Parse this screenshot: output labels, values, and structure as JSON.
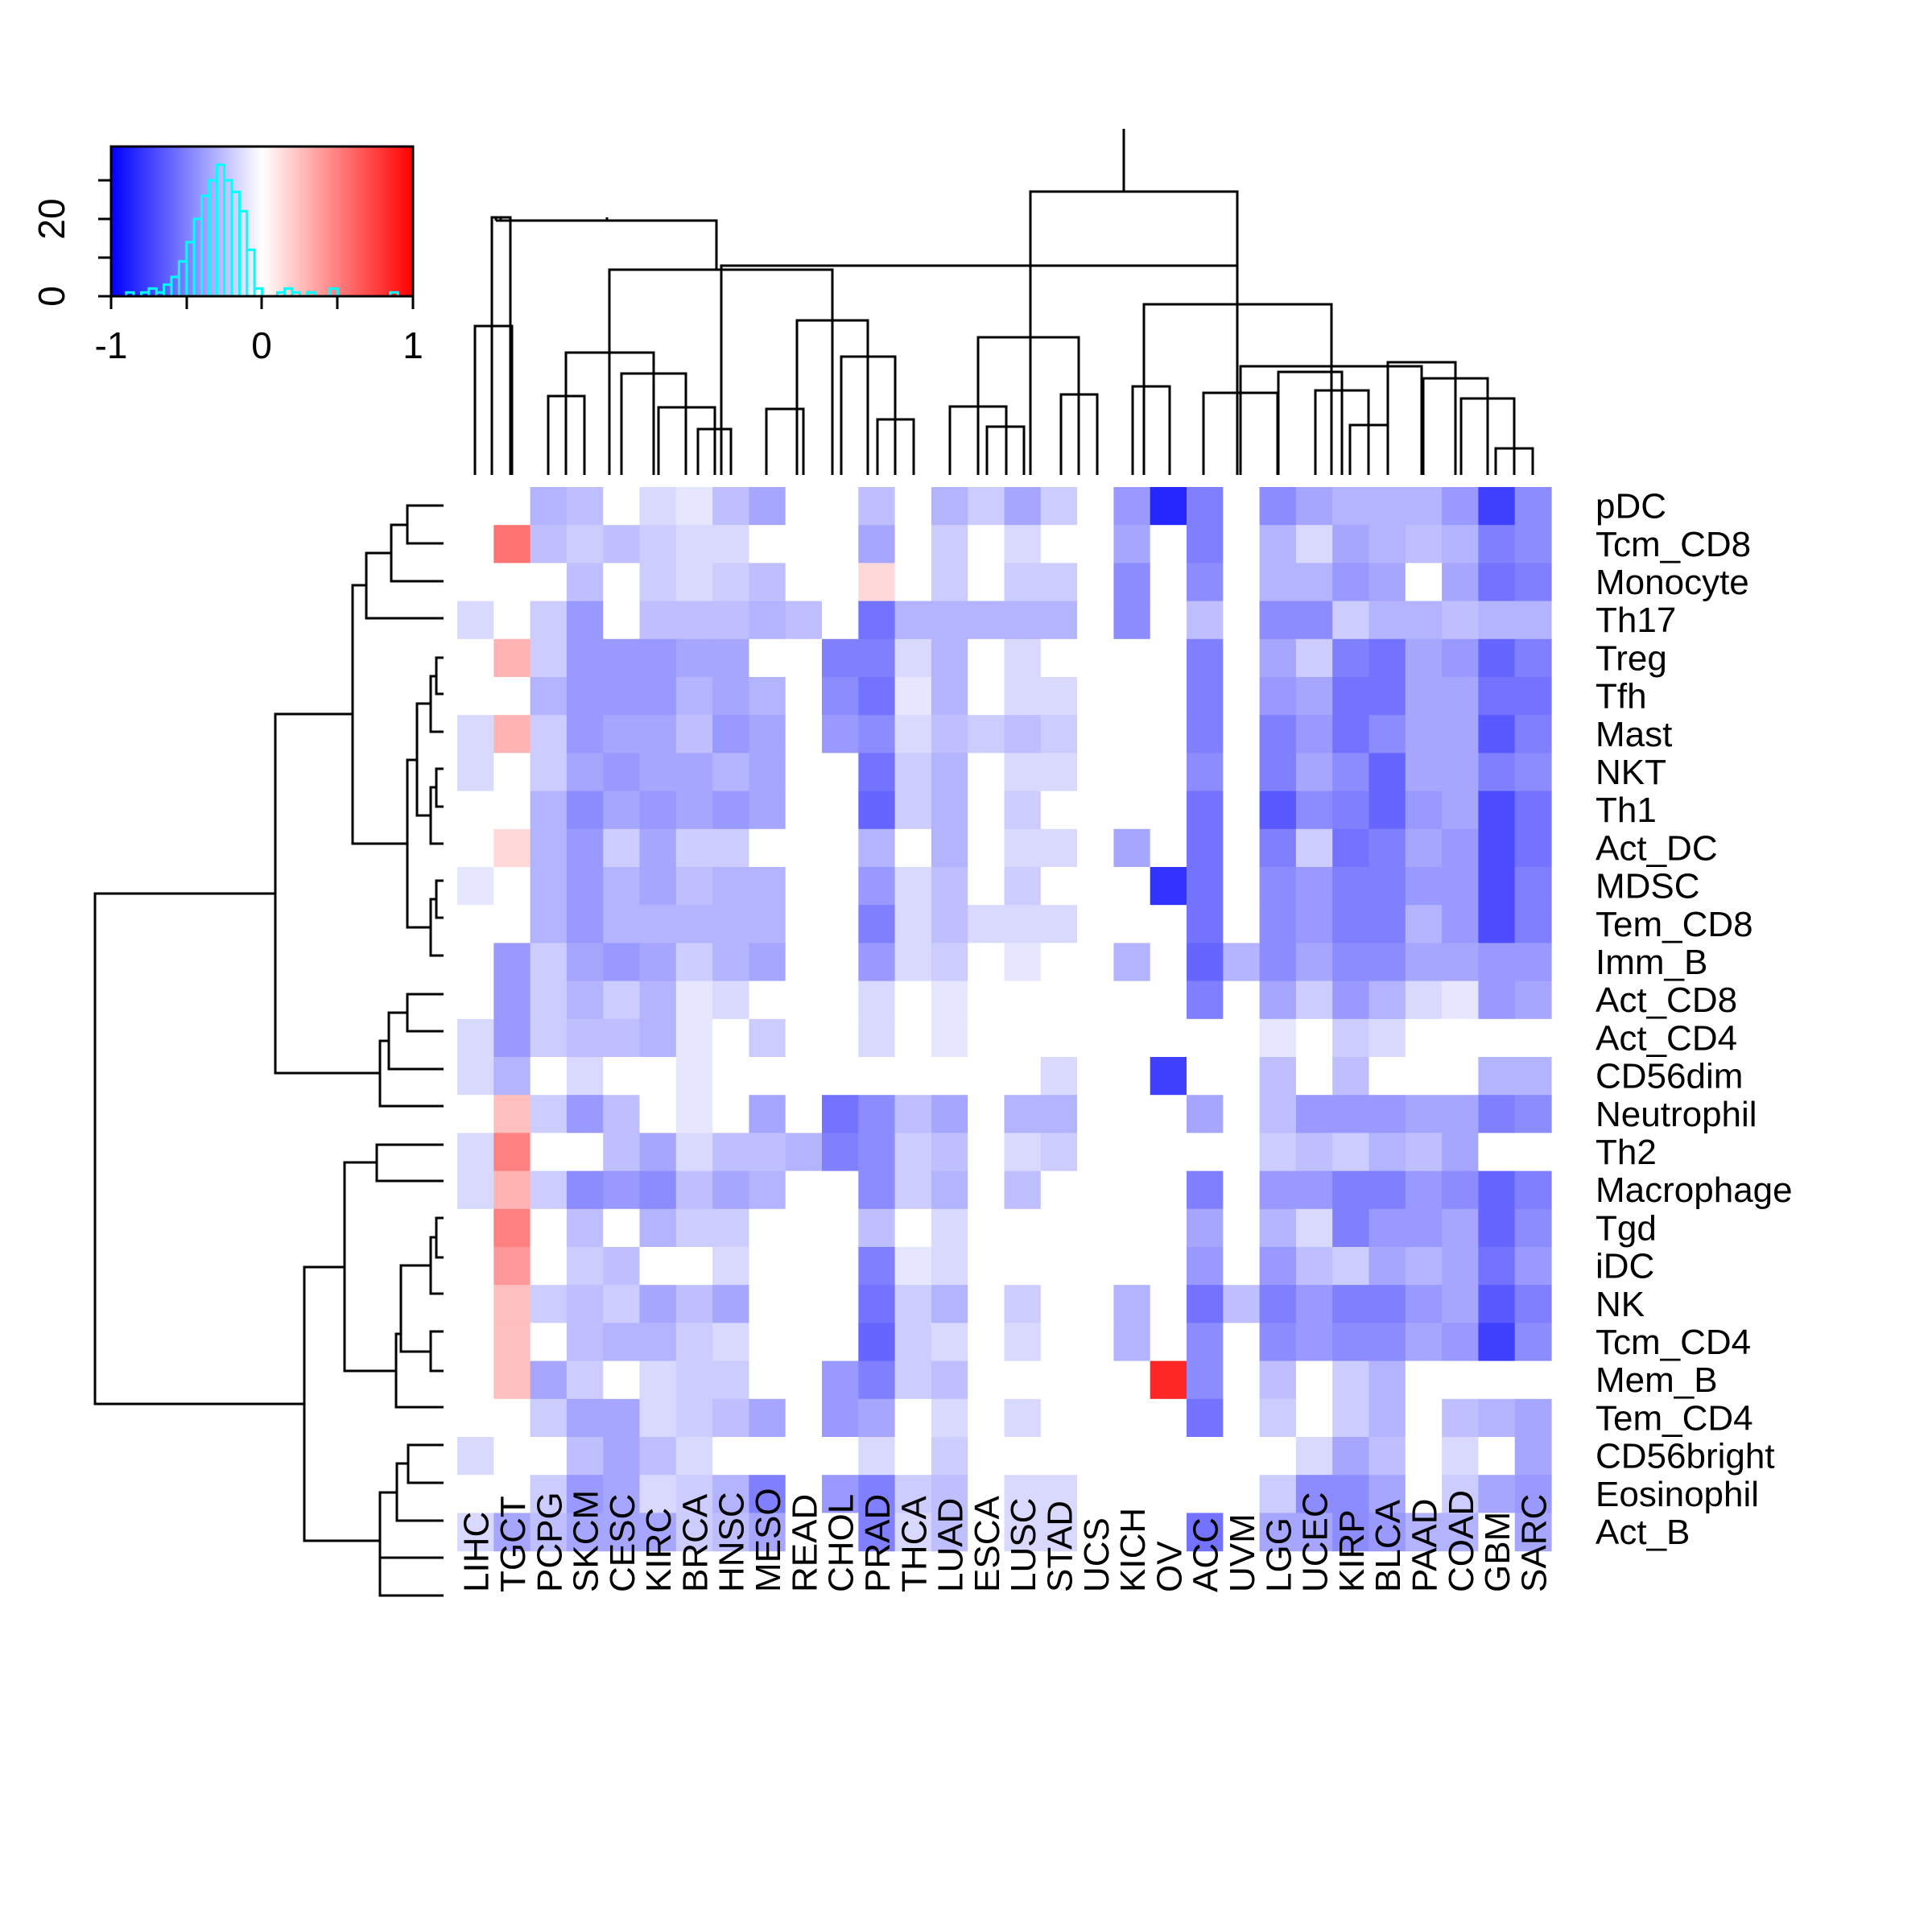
{
  "chart_data": {
    "type": "heatmap",
    "title": "",
    "columns": [
      "LIHC",
      "TGCT",
      "PCPG",
      "SKCM",
      "CESC",
      "KIRC",
      "BRCA",
      "HNSC",
      "MESO",
      "READ",
      "CHOL",
      "PRAD",
      "THCA",
      "LUAD",
      "ESCA",
      "LUSC",
      "STAD",
      "UCS",
      "KICH",
      "OV",
      "ACC",
      "UVM",
      "LGG",
      "UCEC",
      "KIRP",
      "BLCA",
      "PAAD",
      "COAD",
      "GBM",
      "SARC"
    ],
    "rows": [
      "pDC",
      "Tcm_CD8",
      "Monocyte",
      "Th17",
      "Treg",
      "Tfh",
      "Mast",
      "NKT",
      "Th1",
      "Act_DC",
      "MDSC",
      "Tem_CD8",
      "Imm_B",
      "Act_CD8",
      "Act_CD4",
      "CD56dim",
      "Neutrophil",
      "Th2",
      "Macrophage",
      "Tgd",
      "iDC",
      "NK",
      "Tcm_CD4",
      "Mem_B",
      "Tem_CD4",
      "CD56bright",
      "Eosinophil",
      "Act_B"
    ],
    "values": [
      [
        0,
        0,
        -0.3,
        -0.25,
        0,
        -0.15,
        -0.1,
        -0.25,
        -0.35,
        0,
        0,
        -0.25,
        0,
        -0.3,
        -0.2,
        -0.35,
        -0.2,
        0,
        -0.4,
        -0.85,
        -0.5,
        0,
        -0.45,
        -0.35,
        -0.3,
        -0.3,
        -0.3,
        -0.4,
        -0.75,
        -0.45
      ],
      [
        0,
        0.55,
        -0.25,
        -0.2,
        -0.25,
        -0.2,
        -0.15,
        -0.15,
        0,
        0,
        0,
        -0.35,
        0,
        -0.2,
        0,
        -0.15,
        0,
        0,
        -0.35,
        0,
        -0.5,
        0,
        -0.3,
        -0.15,
        -0.35,
        -0.3,
        -0.25,
        -0.3,
        -0.5,
        -0.45
      ],
      [
        0,
        0,
        0,
        -0.25,
        0,
        -0.2,
        -0.15,
        -0.2,
        -0.25,
        0,
        0,
        0.15,
        0,
        -0.2,
        0,
        -0.2,
        -0.2,
        0,
        -0.45,
        0,
        -0.45,
        0,
        -0.3,
        -0.3,
        -0.4,
        -0.35,
        0,
        -0.35,
        -0.55,
        -0.5
      ],
      [
        -0.15,
        0,
        -0.2,
        -0.4,
        0,
        -0.25,
        -0.25,
        -0.25,
        -0.3,
        -0.25,
        0,
        -0.55,
        -0.3,
        -0.3,
        -0.3,
        -0.3,
        -0.3,
        0,
        -0.45,
        0,
        -0.25,
        0,
        -0.45,
        -0.45,
        -0.2,
        -0.3,
        -0.3,
        -0.25,
        -0.3,
        -0.3
      ],
      [
        0,
        0.3,
        -0.2,
        -0.4,
        -0.4,
        -0.4,
        -0.35,
        -0.35,
        0,
        0,
        -0.5,
        -0.5,
        -0.15,
        -0.3,
        0,
        -0.15,
        0,
        0,
        0,
        0,
        -0.5,
        0,
        -0.35,
        -0.2,
        -0.5,
        -0.55,
        -0.35,
        -0.4,
        -0.6,
        -0.5
      ],
      [
        0,
        0,
        -0.3,
        -0.4,
        -0.4,
        -0.4,
        -0.3,
        -0.35,
        -0.3,
        0,
        -0.45,
        -0.55,
        -0.1,
        -0.3,
        0,
        -0.15,
        -0.15,
        0,
        0,
        0,
        -0.5,
        0,
        -0.4,
        -0.35,
        -0.55,
        -0.55,
        -0.35,
        -0.35,
        -0.55,
        -0.55
      ],
      [
        -0.15,
        0.3,
        -0.2,
        -0.4,
        -0.35,
        -0.35,
        -0.25,
        -0.4,
        -0.35,
        0,
        -0.4,
        -0.45,
        -0.15,
        -0.25,
        -0.2,
        -0.25,
        -0.2,
        0,
        0,
        0,
        -0.5,
        0,
        -0.5,
        -0.4,
        -0.55,
        -0.45,
        -0.35,
        -0.35,
        -0.65,
        -0.5
      ],
      [
        -0.15,
        0,
        -0.2,
        -0.35,
        -0.4,
        -0.35,
        -0.35,
        -0.3,
        -0.35,
        0,
        0,
        -0.55,
        -0.2,
        -0.3,
        0,
        -0.15,
        -0.15,
        0,
        0,
        0,
        -0.45,
        0,
        -0.5,
        -0.35,
        -0.45,
        -0.6,
        -0.35,
        -0.35,
        -0.5,
        -0.45
      ],
      [
        0,
        0,
        -0.3,
        -0.45,
        -0.35,
        -0.4,
        -0.35,
        -0.4,
        -0.35,
        0,
        0,
        -0.6,
        -0.2,
        -0.3,
        0,
        -0.2,
        0,
        0,
        0,
        0,
        -0.55,
        0,
        -0.65,
        -0.45,
        -0.5,
        -0.6,
        -0.4,
        -0.35,
        -0.7,
        -0.55
      ],
      [
        0,
        0.15,
        -0.3,
        -0.4,
        -0.2,
        -0.35,
        -0.2,
        -0.2,
        0,
        0,
        0,
        -0.3,
        0,
        -0.3,
        0,
        -0.15,
        -0.15,
        0,
        -0.35,
        0,
        -0.55,
        0,
        -0.5,
        -0.2,
        -0.55,
        -0.5,
        -0.35,
        -0.4,
        -0.7,
        -0.55
      ],
      [
        -0.1,
        0,
        -0.3,
        -0.4,
        -0.3,
        -0.35,
        -0.25,
        -0.3,
        -0.3,
        0,
        0,
        -0.4,
        -0.15,
        -0.25,
        0,
        -0.2,
        0,
        0,
        0,
        -0.8,
        -0.55,
        0,
        -0.45,
        -0.4,
        -0.5,
        -0.5,
        -0.4,
        -0.4,
        -0.7,
        -0.5
      ],
      [
        0,
        0,
        -0.3,
        -0.4,
        -0.3,
        -0.3,
        -0.3,
        -0.3,
        -0.3,
        0,
        0,
        -0.5,
        -0.15,
        -0.25,
        -0.15,
        -0.15,
        -0.15,
        0,
        0,
        0,
        -0.55,
        0,
        -0.45,
        -0.4,
        -0.5,
        -0.5,
        -0.3,
        -0.4,
        -0.7,
        -0.5
      ],
      [
        0,
        -0.4,
        -0.2,
        -0.35,
        -0.4,
        -0.35,
        -0.2,
        -0.3,
        -0.35,
        0,
        0,
        -0.4,
        -0.15,
        -0.2,
        0,
        -0.1,
        0,
        0,
        -0.3,
        0,
        -0.6,
        -0.3,
        -0.45,
        -0.35,
        -0.45,
        -0.45,
        -0.35,
        -0.35,
        -0.4,
        -0.4
      ],
      [
        0,
        -0.4,
        -0.2,
        -0.3,
        -0.2,
        -0.3,
        -0.1,
        -0.15,
        0,
        0,
        0,
        -0.15,
        0,
        -0.1,
        0,
        0,
        0,
        0,
        0,
        0,
        -0.5,
        0,
        -0.35,
        -0.2,
        -0.4,
        -0.3,
        -0.15,
        -0.1,
        -0.4,
        -0.35
      ],
      [
        -0.15,
        -0.4,
        -0.2,
        -0.25,
        -0.25,
        -0.3,
        -0.1,
        0,
        -0.2,
        0,
        0,
        -0.15,
        0,
        -0.1,
        0,
        0,
        0,
        0,
        0,
        0,
        0,
        0,
        -0.1,
        0,
        -0.2,
        -0.15,
        0,
        0,
        0,
        0
      ],
      [
        -0.15,
        -0.3,
        0,
        -0.15,
        0,
        0,
        -0.1,
        0,
        0,
        0,
        0,
        0,
        0,
        0,
        0,
        0,
        -0.15,
        0,
        0,
        -0.75,
        0,
        0,
        -0.25,
        0,
        -0.25,
        0,
        0,
        0,
        -0.3,
        -0.3
      ],
      [
        0,
        0.25,
        -0.2,
        -0.4,
        -0.25,
        0,
        -0.1,
        0,
        -0.35,
        0,
        -0.55,
        -0.45,
        -0.25,
        -0.35,
        0,
        -0.3,
        -0.3,
        0,
        0,
        0,
        -0.35,
        0,
        -0.25,
        -0.4,
        -0.4,
        -0.4,
        -0.35,
        -0.35,
        -0.5,
        -0.45
      ],
      [
        -0.15,
        0.5,
        0,
        0,
        -0.25,
        -0.35,
        -0.15,
        -0.25,
        -0.25,
        -0.3,
        -0.5,
        -0.45,
        -0.2,
        -0.25,
        0,
        -0.15,
        -0.2,
        0,
        0,
        0,
        0,
        0,
        -0.2,
        -0.25,
        -0.2,
        -0.3,
        -0.25,
        -0.35,
        0,
        0
      ],
      [
        -0.15,
        0.3,
        -0.2,
        -0.45,
        -0.4,
        -0.45,
        -0.25,
        -0.35,
        -0.3,
        0,
        0,
        -0.45,
        -0.2,
        -0.3,
        0,
        -0.25,
        0,
        0,
        0,
        0,
        -0.5,
        0,
        -0.4,
        -0.4,
        -0.5,
        -0.5,
        -0.4,
        -0.45,
        -0.6,
        -0.5
      ],
      [
        0,
        0.5,
        0,
        -0.25,
        0,
        -0.3,
        -0.2,
        -0.2,
        0,
        0,
        0,
        -0.25,
        0,
        -0.15,
        0,
        0,
        0,
        0,
        0,
        0,
        -0.35,
        0,
        -0.3,
        -0.15,
        -0.5,
        -0.4,
        -0.4,
        -0.35,
        -0.6,
        -0.45
      ],
      [
        0,
        0.4,
        0,
        -0.2,
        -0.25,
        0,
        0,
        -0.15,
        0,
        0,
        0,
        -0.5,
        -0.1,
        -0.15,
        0,
        0,
        0,
        0,
        0,
        0,
        -0.4,
        0,
        -0.4,
        -0.25,
        -0.2,
        -0.35,
        -0.3,
        -0.35,
        -0.55,
        -0.4
      ],
      [
        0,
        0.25,
        -0.2,
        -0.25,
        -0.2,
        -0.35,
        -0.25,
        -0.35,
        0,
        0,
        0,
        -0.55,
        -0.2,
        -0.3,
        0,
        -0.2,
        0,
        0,
        -0.3,
        0,
        -0.55,
        -0.25,
        -0.5,
        -0.4,
        -0.5,
        -0.5,
        -0.4,
        -0.35,
        -0.65,
        -0.5
      ],
      [
        0,
        0.25,
        0,
        -0.25,
        -0.3,
        -0.3,
        -0.2,
        -0.15,
        0,
        0,
        0,
        -0.6,
        -0.2,
        -0.15,
        0,
        -0.15,
        0,
        0,
        -0.3,
        0,
        -0.45,
        0,
        -0.45,
        -0.4,
        -0.45,
        -0.45,
        -0.35,
        -0.4,
        -0.75,
        -0.45
      ],
      [
        0,
        0.25,
        -0.35,
        -0.2,
        0,
        -0.15,
        -0.2,
        -0.2,
        0,
        0,
        -0.4,
        -0.5,
        -0.2,
        -0.25,
        0,
        0,
        0,
        0,
        0,
        0.85,
        -0.45,
        0,
        -0.25,
        0,
        -0.2,
        -0.3,
        0,
        0,
        0,
        0
      ],
      [
        0,
        0,
        -0.2,
        -0.35,
        -0.35,
        -0.15,
        -0.2,
        -0.25,
        -0.35,
        0,
        -0.4,
        -0.35,
        0,
        -0.15,
        0,
        -0.15,
        0,
        0,
        0,
        0,
        -0.55,
        0,
        -0.2,
        0,
        -0.2,
        -0.3,
        0,
        -0.25,
        -0.3,
        -0.35
      ],
      [
        -0.15,
        0,
        0,
        -0.25,
        -0.35,
        -0.25,
        -0.15,
        0,
        0,
        0,
        0,
        -0.15,
        0,
        -0.2,
        0,
        0,
        0,
        0,
        0,
        0,
        0,
        0,
        0,
        -0.15,
        -0.35,
        -0.25,
        0,
        -0.15,
        0,
        -0.35
      ],
      [
        0,
        0,
        -0.2,
        -0.4,
        -0.35,
        -0.15,
        -0.2,
        -0.3,
        -0.5,
        0,
        -0.4,
        -0.5,
        -0.2,
        -0.25,
        0,
        -0.15,
        -0.15,
        0,
        0,
        0,
        0,
        0,
        -0.2,
        -0.45,
        -0.45,
        -0.35,
        0,
        -0.2,
        -0.35,
        -0.4
      ],
      [
        -0.15,
        -0.35,
        -0.25,
        -0.35,
        -0.35,
        -0.35,
        -0.2,
        -0.25,
        -0.35,
        0,
        0,
        -0.5,
        -0.15,
        -0.25,
        0,
        -0.15,
        -0.15,
        0,
        0,
        0,
        -0.55,
        0,
        -0.35,
        -0.35,
        -0.45,
        -0.4,
        -0.3,
        -0.3,
        0,
        -0.35
      ]
    ],
    "color_key": {
      "low_color": "#0000ff",
      "mid_color": "#ffffff",
      "high_color": "#ff0000",
      "x_ticks": [
        "-1",
        "0",
        "1"
      ],
      "y_ticks": [
        "0",
        "20"
      ],
      "histogram_color": "#00ffff",
      "histogram_bins": [
        [
          -0.9,
          1
        ],
        [
          -0.85,
          0
        ],
        [
          -0.8,
          1
        ],
        [
          -0.75,
          2
        ],
        [
          -0.7,
          1
        ],
        [
          -0.65,
          3
        ],
        [
          -0.6,
          5
        ],
        [
          -0.55,
          9
        ],
        [
          -0.5,
          14
        ],
        [
          -0.45,
          20
        ],
        [
          -0.4,
          26
        ],
        [
          -0.35,
          30
        ],
        [
          -0.3,
          34
        ],
        [
          -0.25,
          30
        ],
        [
          -0.2,
          27
        ],
        [
          -0.15,
          22
        ],
        [
          -0.1,
          12
        ],
        [
          -0.05,
          2
        ],
        [
          0.0,
          0
        ],
        [
          0.1,
          1
        ],
        [
          0.15,
          2
        ],
        [
          0.2,
          1
        ],
        [
          0.3,
          1
        ],
        [
          0.45,
          2
        ],
        [
          0.85,
          1
        ]
      ]
    },
    "column_order_note": "",
    "legend": "top-left"
  }
}
